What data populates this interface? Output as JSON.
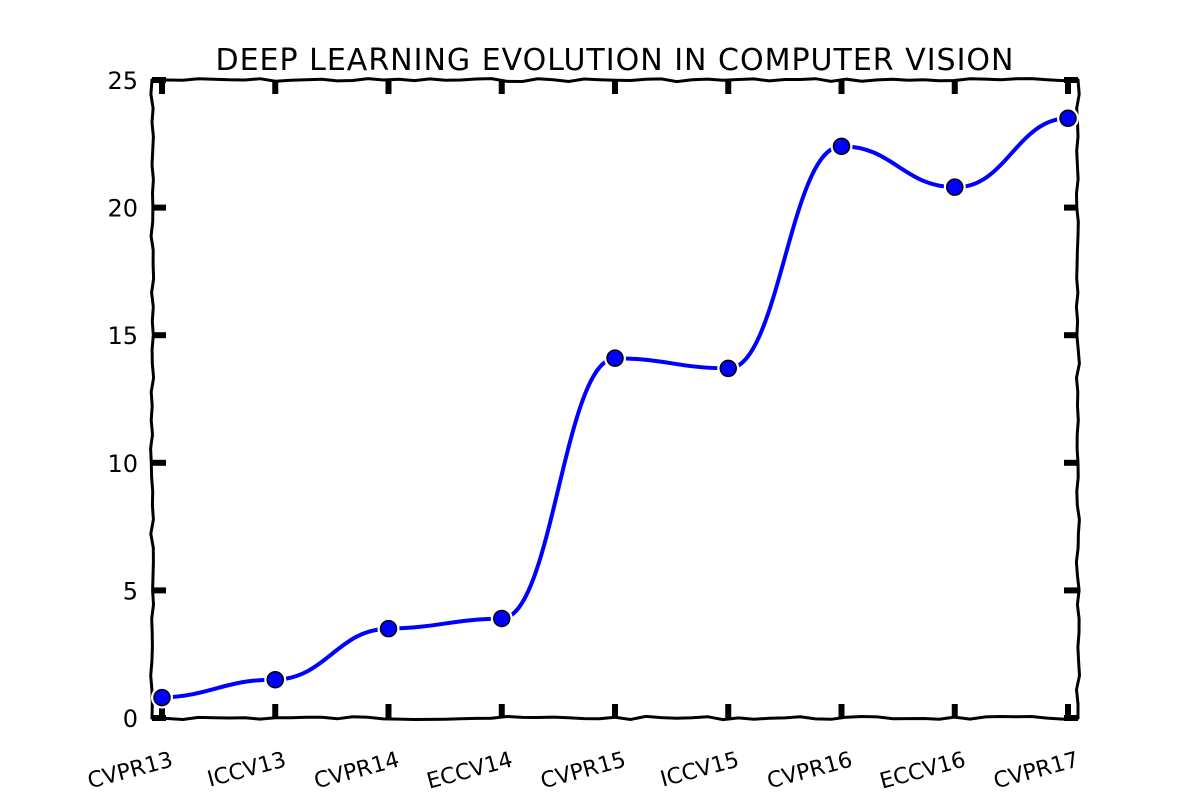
{
  "chart_data": {
    "type": "line",
    "title": "DEEP LEARNING EVOLUTION IN COMPUTER VISION",
    "xlabel": "",
    "ylabel": "",
    "categories": [
      "CVPR13",
      "ICCV13",
      "CVPR14",
      "ECCV14",
      "CVPR15",
      "ICCV15",
      "CVPR16",
      "ECCV16",
      "CVPR17"
    ],
    "series": [
      {
        "values": [
          0.8,
          1.5,
          3.5,
          3.9,
          14.1,
          13.7,
          22.4,
          20.8,
          23.5
        ]
      }
    ],
    "ylim": [
      0,
      25
    ],
    "yticks": [
      0,
      5,
      10,
      15,
      20,
      25
    ],
    "ytick_labels": [
      "0",
      "5",
      "10",
      "15",
      "20",
      "25"
    ],
    "grid": false,
    "legend": "none",
    "colors": {
      "line": "#0000ff",
      "marker": "#0000ff",
      "marker_edge": "#ffffff",
      "axes": "#000000"
    },
    "style": "xkcd"
  }
}
